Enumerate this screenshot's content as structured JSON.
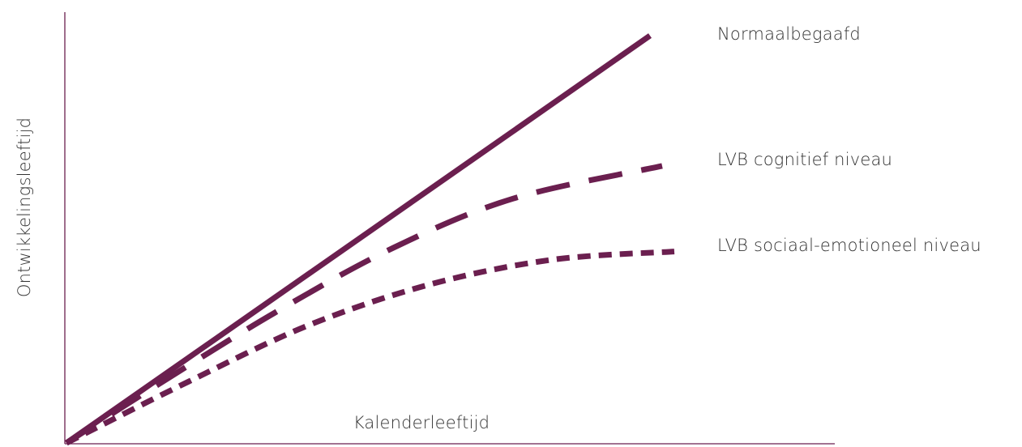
{
  "chart_data": {
    "type": "line",
    "title": "",
    "xlabel": "Kalenderleeftijd",
    "ylabel": "Ontwikkelingsleeftijd",
    "grid": false,
    "legend_position": "right",
    "series": [
      {
        "name": "Normaalbegaafd",
        "style": "solid",
        "color": "#6b1f4f",
        "x": [
          0,
          1
        ],
        "y": [
          0,
          1
        ]
      },
      {
        "name": "LVB cognitief niveau",
        "style": "long-dash",
        "color": "#6b1f4f",
        "x": [
          0,
          0.15,
          0.35,
          0.55,
          0.75,
          1.0
        ],
        "y": [
          0,
          0.14,
          0.32,
          0.48,
          0.6,
          0.68
        ]
      },
      {
        "name": "LVB sociaal-emotioneel niveau",
        "style": "short-dash",
        "color": "#6b1f4f",
        "x": [
          0,
          0.2,
          0.4,
          0.6,
          0.8,
          1.0
        ],
        "y": [
          0,
          0.15,
          0.29,
          0.39,
          0.45,
          0.47
        ]
      }
    ]
  }
}
